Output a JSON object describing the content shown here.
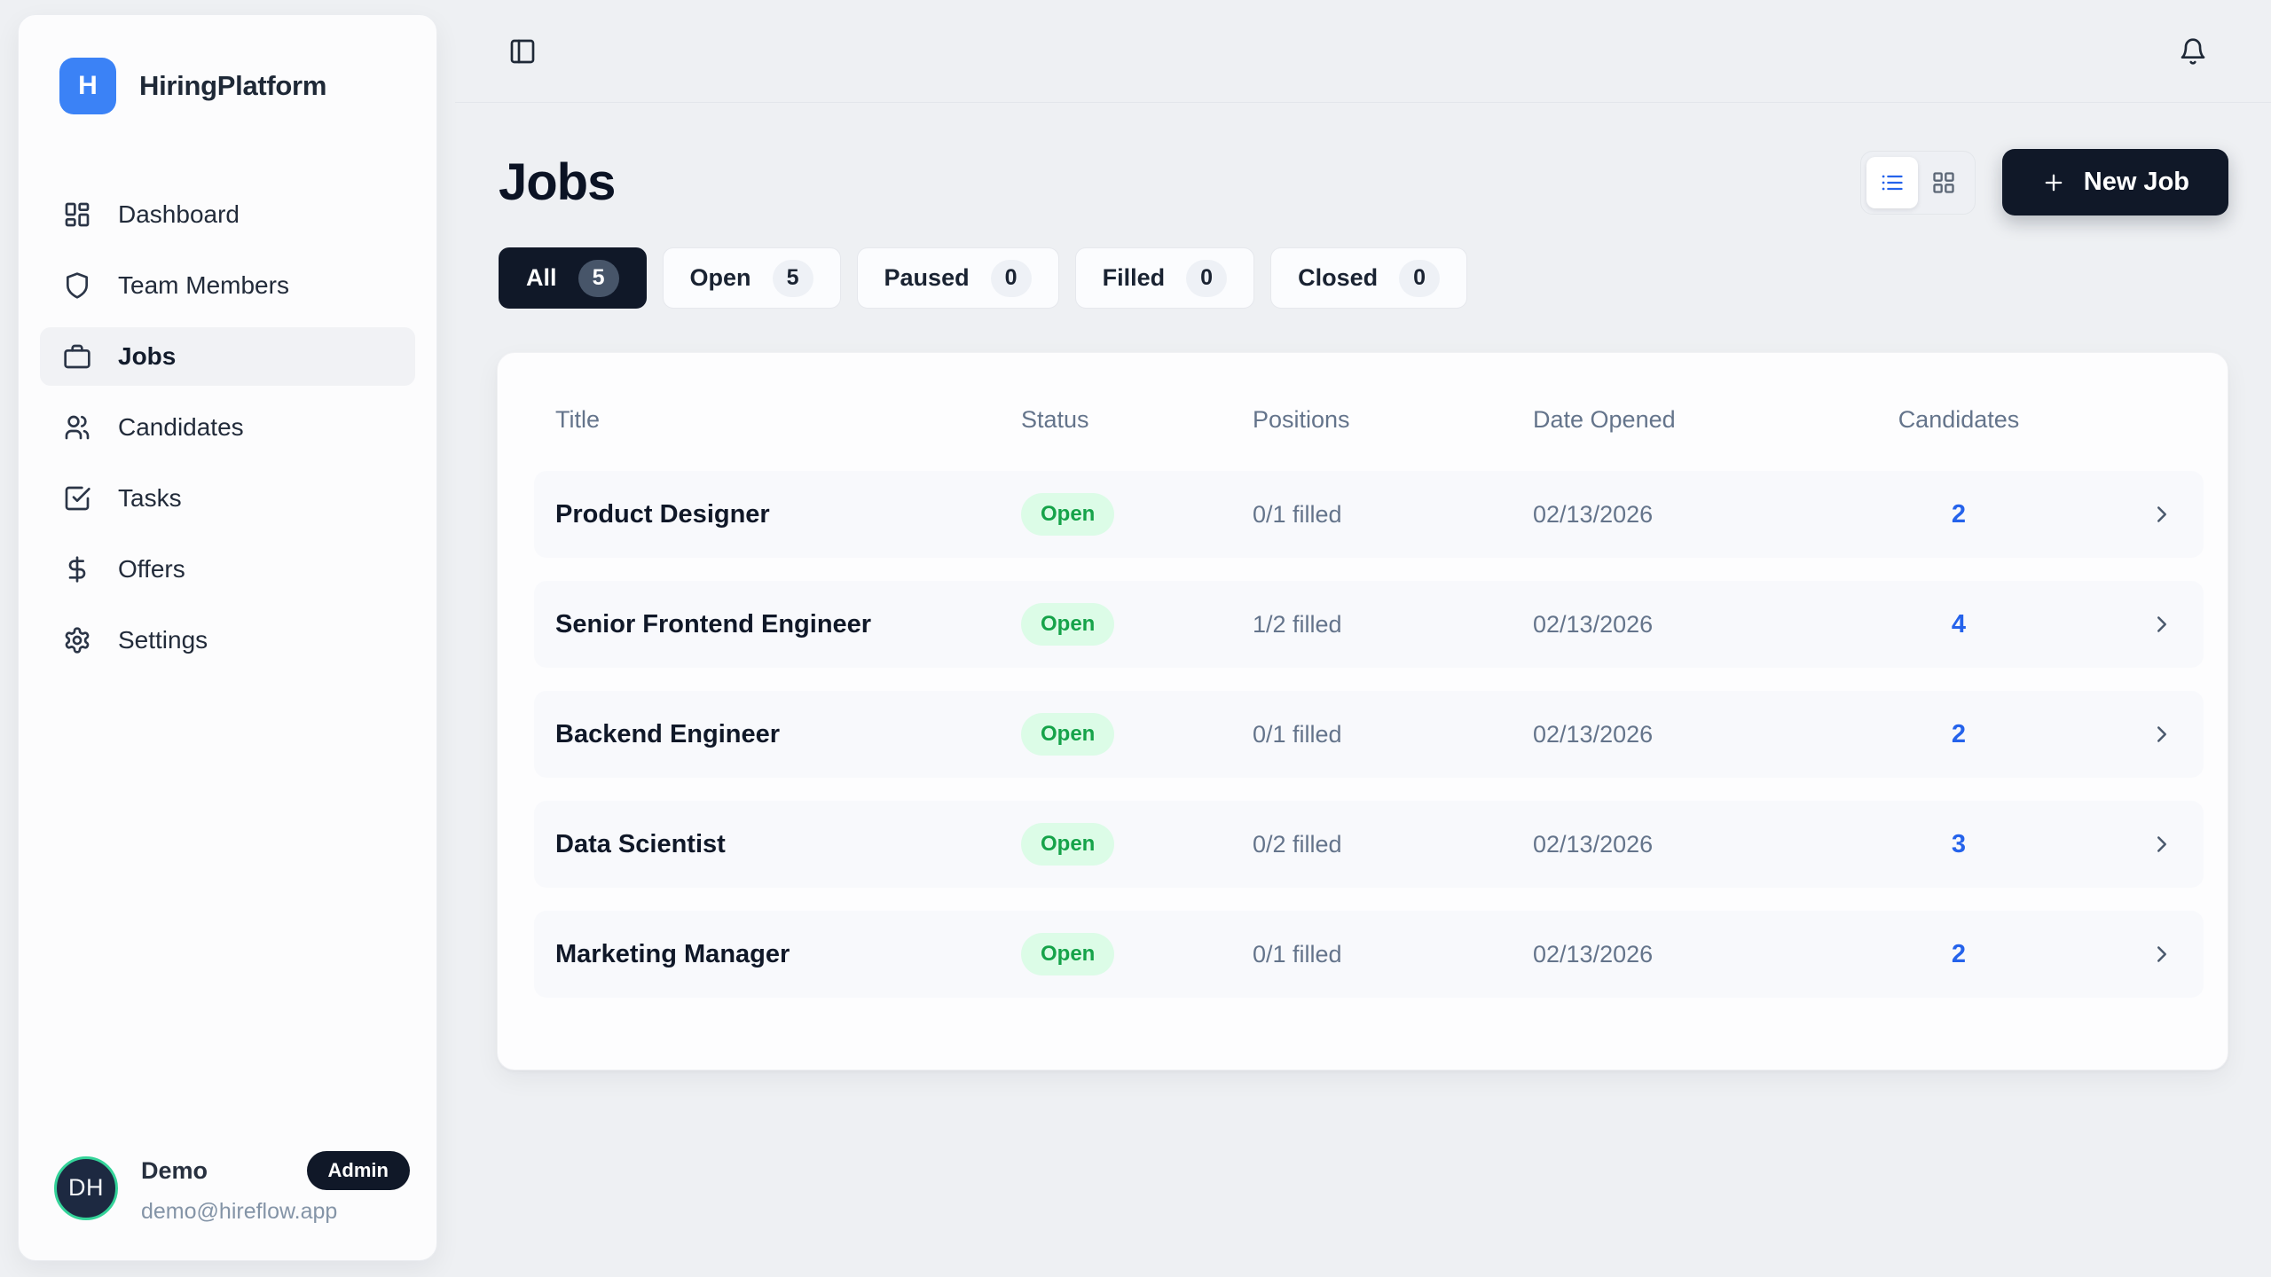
{
  "brand": {
    "logo_letter": "H",
    "name": "HiringPlatform"
  },
  "sidebar": {
    "items": [
      {
        "label": "Dashboard",
        "icon": "dashboard-icon",
        "active": false
      },
      {
        "label": "Team Members",
        "icon": "shield-icon",
        "active": false
      },
      {
        "label": "Jobs",
        "icon": "briefcase-icon",
        "active": true
      },
      {
        "label": "Candidates",
        "icon": "users-icon",
        "active": false
      },
      {
        "label": "Tasks",
        "icon": "check-square-icon",
        "active": false
      },
      {
        "label": "Offers",
        "icon": "dollar-icon",
        "active": false
      },
      {
        "label": "Settings",
        "icon": "gear-icon",
        "active": false
      }
    ]
  },
  "user": {
    "initials": "DH",
    "name": "Demo",
    "role": "Admin",
    "email": "demo@hireflow.app"
  },
  "topbar": {
    "icons": [
      "panel-left-icon",
      "bell-icon"
    ]
  },
  "page": {
    "title": "Jobs"
  },
  "actions": {
    "new_job": "New Job",
    "view_modes": [
      "list-view-icon",
      "grid-view-icon"
    ],
    "active_view": "list"
  },
  "filters": [
    {
      "label": "All",
      "count": 5,
      "active": true
    },
    {
      "label": "Open",
      "count": 5,
      "active": false
    },
    {
      "label": "Paused",
      "count": 0,
      "active": false
    },
    {
      "label": "Filled",
      "count": 0,
      "active": false
    },
    {
      "label": "Closed",
      "count": 0,
      "active": false
    }
  ],
  "table": {
    "columns": [
      "Title",
      "Status",
      "Positions",
      "Date Opened",
      "Candidates"
    ],
    "rows": [
      {
        "title": "Product Designer",
        "status": "Open",
        "positions": "0/1 filled",
        "date_opened": "02/13/2026",
        "candidates": "2"
      },
      {
        "title": "Senior Frontend Engineer",
        "status": "Open",
        "positions": "1/2 filled",
        "date_opened": "02/13/2026",
        "candidates": "4"
      },
      {
        "title": "Backend Engineer",
        "status": "Open",
        "positions": "0/1 filled",
        "date_opened": "02/13/2026",
        "candidates": "2"
      },
      {
        "title": "Data Scientist",
        "status": "Open",
        "positions": "0/2 filled",
        "date_opened": "02/13/2026",
        "candidates": "3"
      },
      {
        "title": "Marketing Manager",
        "status": "Open",
        "positions": "0/1 filled",
        "date_opened": "02/13/2026",
        "candidates": "2"
      }
    ]
  },
  "colors": {
    "page_bg": "#eef0f3",
    "panel_bg": "#fcfcfd",
    "navy": "#101828",
    "logo_blue": "#3b82f6",
    "accent_blue": "#2563eb",
    "status_badge_bg": "#dcfce7",
    "status_badge_text": "#16a34a",
    "avatar_ring": "#34d399",
    "muted_text": "#64748b"
  }
}
